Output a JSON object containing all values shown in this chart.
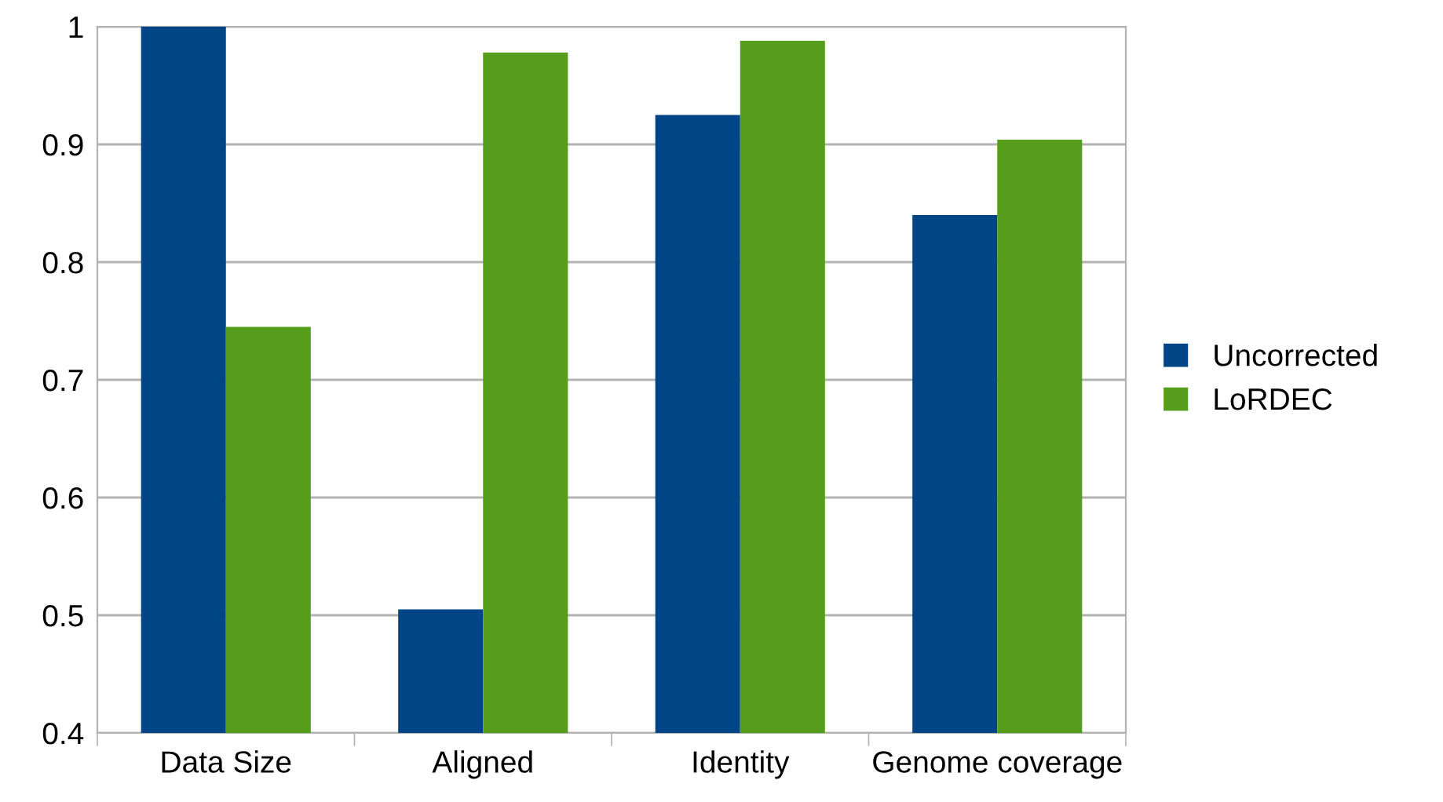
{
  "chart_data": {
    "type": "bar",
    "categories": [
      "Data Size",
      "Aligned",
      "Identity",
      "Genome coverage"
    ],
    "series": [
      {
        "name": "Uncorrected",
        "color": "#004586",
        "values": [
          1.0,
          0.505,
          0.925,
          0.84
        ]
      },
      {
        "name": "LoRDEC",
        "color": "#579d1c",
        "values": [
          0.745,
          0.978,
          0.988,
          0.904
        ]
      }
    ],
    "ylim": [
      0.4,
      1
    ],
    "yticks": [
      0.4,
      0.5,
      0.6,
      0.7,
      0.8,
      0.9,
      1
    ],
    "grid": "y",
    "legend": "right"
  }
}
